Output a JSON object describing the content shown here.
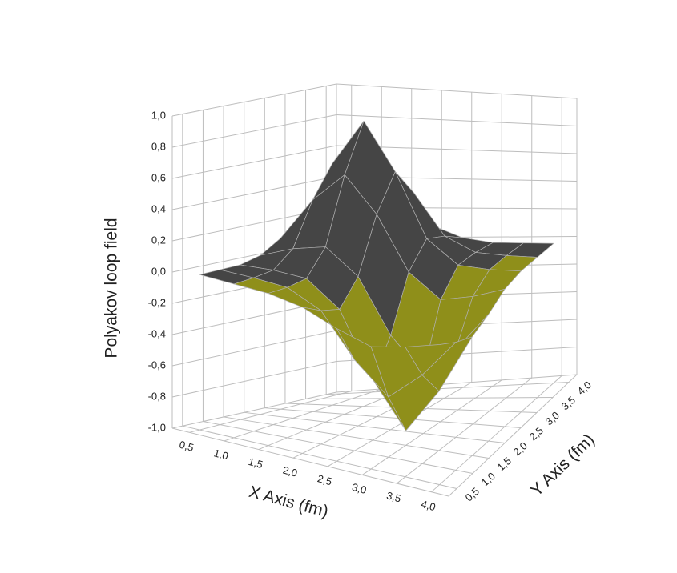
{
  "chart_data": {
    "type": "surface3d",
    "zlabel": "Polyakov loop field",
    "xlabel": "X Axis (fm)",
    "ylabel": "Y Axis (fm)",
    "x": [
      0.5,
      1.0,
      1.5,
      2.0,
      2.5,
      3.0,
      3.5,
      4.0
    ],
    "y": [
      0.5,
      1.0,
      1.5,
      2.0,
      2.5,
      3.0,
      3.5,
      4.0
    ],
    "z": [
      [
        0,
        0,
        0,
        -0.03,
        -0.11,
        -0.17,
        -0.11,
        -0.03
      ],
      [
        0,
        0,
        -0.01,
        -0.11,
        -0.39,
        -0.59,
        -0.39,
        -0.11
      ],
      [
        0,
        0.01,
        0,
        -0.16,
        -0.59,
        -0.9,
        -0.59,
        -0.17
      ],
      [
        0.03,
        0.11,
        0.16,
        0,
        -0.36,
        -0.59,
        -0.39,
        -0.11
      ],
      [
        0.11,
        0.39,
        0.59,
        0.36,
        0,
        -0.16,
        -0.11,
        -0.03
      ],
      [
        0.17,
        0.59,
        0.9,
        0.59,
        0.16,
        0,
        -0.01,
        0
      ],
      [
        0.11,
        0.39,
        0.59,
        0.39,
        0.11,
        0.01,
        0,
        0
      ],
      [
        0.03,
        0.11,
        0.17,
        0.11,
        0.03,
        0,
        0,
        0
      ]
    ],
    "xlim": [
      0.25,
      4.25
    ],
    "ylim": [
      0.25,
      4.25
    ],
    "zlim": [
      -1,
      1
    ],
    "xticks": [
      {
        "value": 0.5,
        "label": "0,5"
      },
      {
        "value": 1.0,
        "label": "1,0"
      },
      {
        "value": 1.5,
        "label": "1,5"
      },
      {
        "value": 2.0,
        "label": "2,0"
      },
      {
        "value": 2.5,
        "label": "2,5"
      },
      {
        "value": 3.0,
        "label": "3,0"
      },
      {
        "value": 3.5,
        "label": "3,5"
      },
      {
        "value": 4.0,
        "label": "4,0"
      }
    ],
    "yticks": [
      {
        "value": 0.5,
        "label": "0,5"
      },
      {
        "value": 1.0,
        "label": "1,0"
      },
      {
        "value": 1.5,
        "label": "1,5"
      },
      {
        "value": 2.0,
        "label": "2,0"
      },
      {
        "value": 2.5,
        "label": "2,5"
      },
      {
        "value": 3.0,
        "label": "3,0"
      },
      {
        "value": 3.5,
        "label": "3,5"
      },
      {
        "value": 4.0,
        "label": "4,0"
      }
    ],
    "zticks": [
      {
        "value": -1.0,
        "label": "-1,0"
      },
      {
        "value": -0.8,
        "label": "-0,8"
      },
      {
        "value": -0.6,
        "label": "-0,6"
      },
      {
        "value": -0.4,
        "label": "-0,4"
      },
      {
        "value": -0.2,
        "label": "-0,2"
      },
      {
        "value": 0,
        "label": "0,0"
      },
      {
        "value": 0.2,
        "label": "0,2"
      },
      {
        "value": 0.4,
        "label": "0,4"
      },
      {
        "value": 0.6,
        "label": "0,6"
      },
      {
        "value": 0.8,
        "label": "0,8"
      },
      {
        "value": 1.0,
        "label": "1,0"
      }
    ],
    "grid": true,
    "surface_color": "#454545",
    "negative_color": "#8f8f1a",
    "mesh_color": "#b0b0b0"
  }
}
